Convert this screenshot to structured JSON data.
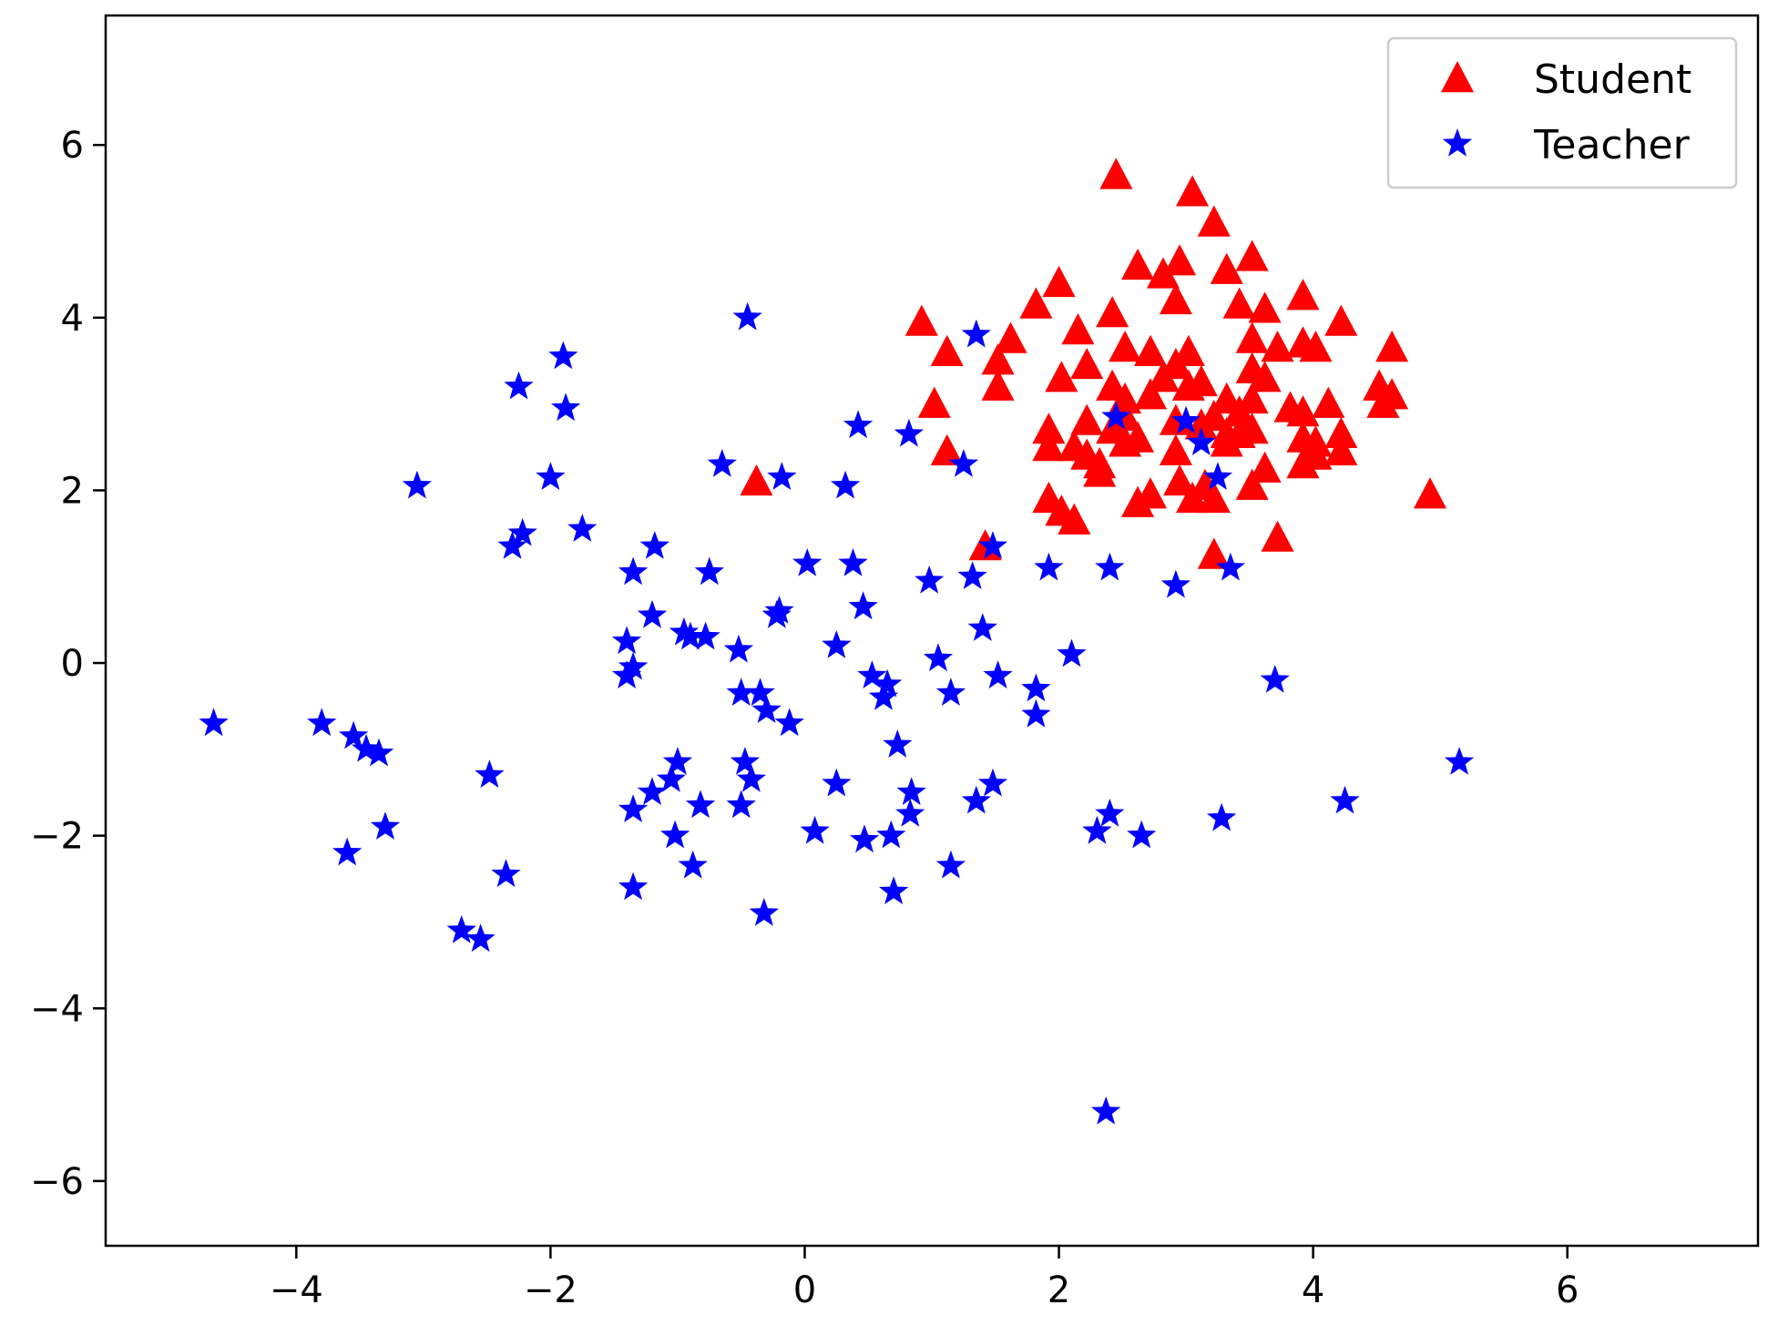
{
  "chart_data": {
    "type": "scatter",
    "title": "",
    "xlabel": "",
    "ylabel": "",
    "xlim": [
      -5.5,
      7.5
    ],
    "ylim": [
      -6.75,
      7.5
    ],
    "xticks": [
      -4,
      -2,
      0,
      2,
      4,
      6
    ],
    "yticks": [
      -6,
      -4,
      -2,
      0,
      2,
      4,
      6
    ],
    "xtick_labels": [
      "−4",
      "−2",
      "0",
      "2",
      "4",
      "6"
    ],
    "ytick_labels": [
      "−6",
      "−4",
      "−2",
      "0",
      "2",
      "4",
      "6"
    ],
    "grid": false,
    "legend_position": "top-right",
    "series": [
      {
        "name": "Student",
        "marker": "triangle",
        "color": "#ff0000",
        "points": [
          [
            2.45,
            5.65
          ],
          [
            3.05,
            5.45
          ],
          [
            3.22,
            5.1
          ],
          [
            2.62,
            4.6
          ],
          [
            2.95,
            4.65
          ],
          [
            2.82,
            4.5
          ],
          [
            3.32,
            4.55
          ],
          [
            3.52,
            4.7
          ],
          [
            2.0,
            4.4
          ],
          [
            1.82,
            4.15
          ],
          [
            2.42,
            4.05
          ],
          [
            2.92,
            4.2
          ],
          [
            3.42,
            4.15
          ],
          [
            3.62,
            4.1
          ],
          [
            3.92,
            4.25
          ],
          [
            0.92,
            3.95
          ],
          [
            1.62,
            3.75
          ],
          [
            2.15,
            3.85
          ],
          [
            2.52,
            3.65
          ],
          [
            2.72,
            3.6
          ],
          [
            2.92,
            3.45
          ],
          [
            3.02,
            3.6
          ],
          [
            3.52,
            3.75
          ],
          [
            3.72,
            3.65
          ],
          [
            3.92,
            3.7
          ],
          [
            4.02,
            3.65
          ],
          [
            4.22,
            3.95
          ],
          [
            4.62,
            3.65
          ],
          [
            1.12,
            3.6
          ],
          [
            1.52,
            3.5
          ],
          [
            2.02,
            3.3
          ],
          [
            2.22,
            3.45
          ],
          [
            2.42,
            3.2
          ],
          [
            2.52,
            3.05
          ],
          [
            2.72,
            3.1
          ],
          [
            2.82,
            3.3
          ],
          [
            3.02,
            3.2
          ],
          [
            3.12,
            3.25
          ],
          [
            3.32,
            3.05
          ],
          [
            3.52,
            3.4
          ],
          [
            3.62,
            3.3
          ],
          [
            3.52,
            3.05
          ],
          [
            3.42,
            2.9
          ],
          [
            3.82,
            2.95
          ],
          [
            3.92,
            2.9
          ],
          [
            4.12,
            3.0
          ],
          [
            4.52,
            3.2
          ],
          [
            4.62,
            3.1
          ],
          [
            4.55,
            3.0
          ],
          [
            1.02,
            3.0
          ],
          [
            1.52,
            3.2
          ],
          [
            2.22,
            2.8
          ],
          [
            2.42,
            2.7
          ],
          [
            2.52,
            2.85
          ],
          [
            2.62,
            2.6
          ],
          [
            2.92,
            2.8
          ],
          [
            3.12,
            2.75
          ],
          [
            3.22,
            2.85
          ],
          [
            3.32,
            2.65
          ],
          [
            3.42,
            2.65
          ],
          [
            3.52,
            2.7
          ],
          [
            3.92,
            2.6
          ],
          [
            4.02,
            2.55
          ],
          [
            4.22,
            2.45
          ],
          [
            4.22,
            2.65
          ],
          [
            1.92,
            2.7
          ],
          [
            1.92,
            2.5
          ],
          [
            2.12,
            2.5
          ],
          [
            2.22,
            2.4
          ],
          [
            2.32,
            2.3
          ],
          [
            2.52,
            2.55
          ],
          [
            2.92,
            2.45
          ],
          [
            3.32,
            2.55
          ],
          [
            1.12,
            2.45
          ],
          [
            1.92,
            1.9
          ],
          [
            2.02,
            1.75
          ],
          [
            2.12,
            1.65
          ],
          [
            2.32,
            2.2
          ],
          [
            2.62,
            1.85
          ],
          [
            2.72,
            1.95
          ],
          [
            2.95,
            2.1
          ],
          [
            3.05,
            1.9
          ],
          [
            3.15,
            2.05
          ],
          [
            3.22,
            1.9
          ],
          [
            3.52,
            2.05
          ],
          [
            3.62,
            2.25
          ],
          [
            3.92,
            2.3
          ],
          [
            4.02,
            2.4
          ],
          [
            4.92,
            1.95
          ],
          [
            3.72,
            1.45
          ],
          [
            3.22,
            1.25
          ],
          [
            1.42,
            1.35
          ],
          [
            -0.38,
            2.1
          ]
        ]
      },
      {
        "name": "Teacher",
        "marker": "star",
        "color": "#0000ff",
        "points": [
          [
            -0.45,
            4.0
          ],
          [
            1.35,
            3.8
          ],
          [
            -1.9,
            3.55
          ],
          [
            -2.25,
            3.2
          ],
          [
            -1.88,
            2.95
          ],
          [
            0.42,
            2.75
          ],
          [
            0.82,
            2.65
          ],
          [
            2.45,
            2.85
          ],
          [
            3.0,
            2.8
          ],
          [
            3.12,
            2.55
          ],
          [
            -0.65,
            2.3
          ],
          [
            -0.18,
            2.15
          ],
          [
            0.32,
            2.05
          ],
          [
            1.25,
            2.3
          ],
          [
            -2.0,
            2.15
          ],
          [
            -3.05,
            2.05
          ],
          [
            3.25,
            2.15
          ],
          [
            -1.75,
            1.55
          ],
          [
            -2.3,
            1.35
          ],
          [
            -2.22,
            1.5
          ],
          [
            -1.18,
            1.35
          ],
          [
            -0.75,
            1.05
          ],
          [
            -1.35,
            1.05
          ],
          [
            0.02,
            1.15
          ],
          [
            0.38,
            1.15
          ],
          [
            0.98,
            0.95
          ],
          [
            1.32,
            1.0
          ],
          [
            1.48,
            1.35
          ],
          [
            1.92,
            1.1
          ],
          [
            2.4,
            1.1
          ],
          [
            2.92,
            0.9
          ],
          [
            3.35,
            1.1
          ],
          [
            -0.22,
            0.55
          ],
          [
            -0.2,
            0.6
          ],
          [
            0.46,
            0.65
          ],
          [
            -1.2,
            0.55
          ],
          [
            -0.95,
            0.35
          ],
          [
            -0.9,
            0.3
          ],
          [
            -0.78,
            0.3
          ],
          [
            -1.4,
            0.25
          ],
          [
            -0.52,
            0.15
          ],
          [
            0.25,
            0.2
          ],
          [
            1.05,
            0.05
          ],
          [
            1.4,
            0.4
          ],
          [
            2.1,
            0.1
          ],
          [
            -1.35,
            -0.05
          ],
          [
            -1.4,
            -0.15
          ],
          [
            0.53,
            -0.15
          ],
          [
            0.65,
            -0.25
          ],
          [
            0.62,
            -0.4
          ],
          [
            1.15,
            -0.35
          ],
          [
            1.52,
            -0.15
          ],
          [
            1.82,
            -0.3
          ],
          [
            1.82,
            -0.6
          ],
          [
            3.7,
            -0.2
          ],
          [
            -0.5,
            -0.35
          ],
          [
            -0.35,
            -0.35
          ],
          [
            -0.3,
            -0.55
          ],
          [
            -0.12,
            -0.7
          ],
          [
            0.73,
            -0.95
          ],
          [
            -4.65,
            -0.7
          ],
          [
            -3.8,
            -0.7
          ],
          [
            -3.55,
            -0.85
          ],
          [
            -3.45,
            -1.0
          ],
          [
            -3.35,
            -1.05
          ],
          [
            -2.48,
            -1.3
          ],
          [
            -1.0,
            -1.15
          ],
          [
            -1.05,
            -1.35
          ],
          [
            -0.47,
            -1.15
          ],
          [
            -0.42,
            -1.35
          ],
          [
            0.25,
            -1.4
          ],
          [
            0.84,
            -1.5
          ],
          [
            1.48,
            -1.4
          ],
          [
            5.15,
            -1.15
          ],
          [
            -1.2,
            -1.5
          ],
          [
            -1.35,
            -1.7
          ],
          [
            -0.82,
            -1.65
          ],
          [
            -0.5,
            -1.65
          ],
          [
            0.83,
            -1.75
          ],
          [
            1.35,
            -1.6
          ],
          [
            4.25,
            -1.6
          ],
          [
            3.28,
            -1.8
          ],
          [
            2.4,
            -1.75
          ],
          [
            2.3,
            -1.95
          ],
          [
            2.65,
            -2.0
          ],
          [
            0.08,
            -1.95
          ],
          [
            0.47,
            -2.05
          ],
          [
            0.68,
            -2.0
          ],
          [
            -1.02,
            -2.0
          ],
          [
            -3.3,
            -1.9
          ],
          [
            -3.6,
            -2.2
          ],
          [
            -2.35,
            -2.45
          ],
          [
            -0.88,
            -2.35
          ],
          [
            1.15,
            -2.35
          ],
          [
            -1.35,
            -2.6
          ],
          [
            0.7,
            -2.65
          ],
          [
            -0.32,
            -2.9
          ],
          [
            -2.7,
            -3.1
          ],
          [
            -2.55,
            -3.2
          ],
          [
            2.37,
            -5.2
          ]
        ]
      }
    ]
  }
}
